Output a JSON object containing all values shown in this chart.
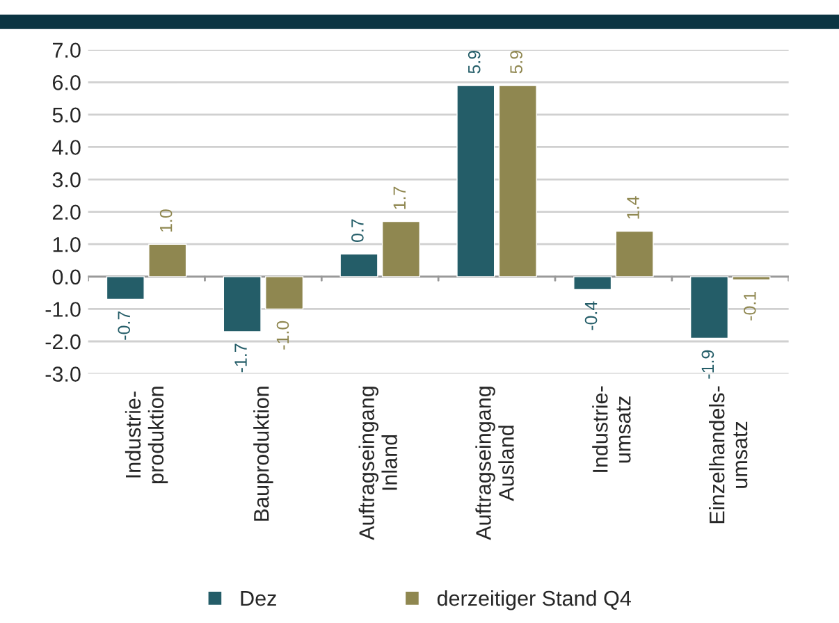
{
  "chart_data": {
    "type": "bar",
    "categories": [
      "Industrie-\nproduktion",
      "Bauproduktion",
      "Auftragseingang\nInland",
      "Auftragseingang\nAusland",
      "Industrie-\numsatz",
      "Einzelhandels-\numsatz"
    ],
    "series": [
      {
        "name": "Dez",
        "color": "#245d68",
        "values": [
          -0.7,
          -1.7,
          0.7,
          5.9,
          -0.4,
          -1.9
        ],
        "value_labels": [
          "-0.7",
          "-1.7",
          "0.7",
          "5.9",
          "-0.4",
          "-1.9"
        ]
      },
      {
        "name": "derzeitiger Stand Q4",
        "color": "#8f8750",
        "values": [
          1.0,
          -1.0,
          1.7,
          5.9,
          1.4,
          -0.1
        ],
        "value_labels": [
          "1.0",
          "-1.0",
          "1.7",
          "5.9",
          "1.4",
          "-0.1"
        ]
      }
    ],
    "ylim": [
      -3.0,
      7.0
    ],
    "yticks": [
      {
        "value": -3,
        "label": "-3.0"
      },
      {
        "value": -2,
        "label": "-2.0"
      },
      {
        "value": -1,
        "label": "-1.0"
      },
      {
        "value": 0,
        "label": "0.0"
      },
      {
        "value": 1,
        "label": "1.0"
      },
      {
        "value": 2,
        "label": "2.0"
      },
      {
        "value": 3,
        "label": "3.0"
      },
      {
        "value": 4,
        "label": "4.0"
      },
      {
        "value": 5,
        "label": "5.0"
      },
      {
        "value": 6,
        "label": "6.0"
      },
      {
        "value": 7,
        "label": "7.0"
      }
    ],
    "grid": "y",
    "legend": "bottom"
  }
}
